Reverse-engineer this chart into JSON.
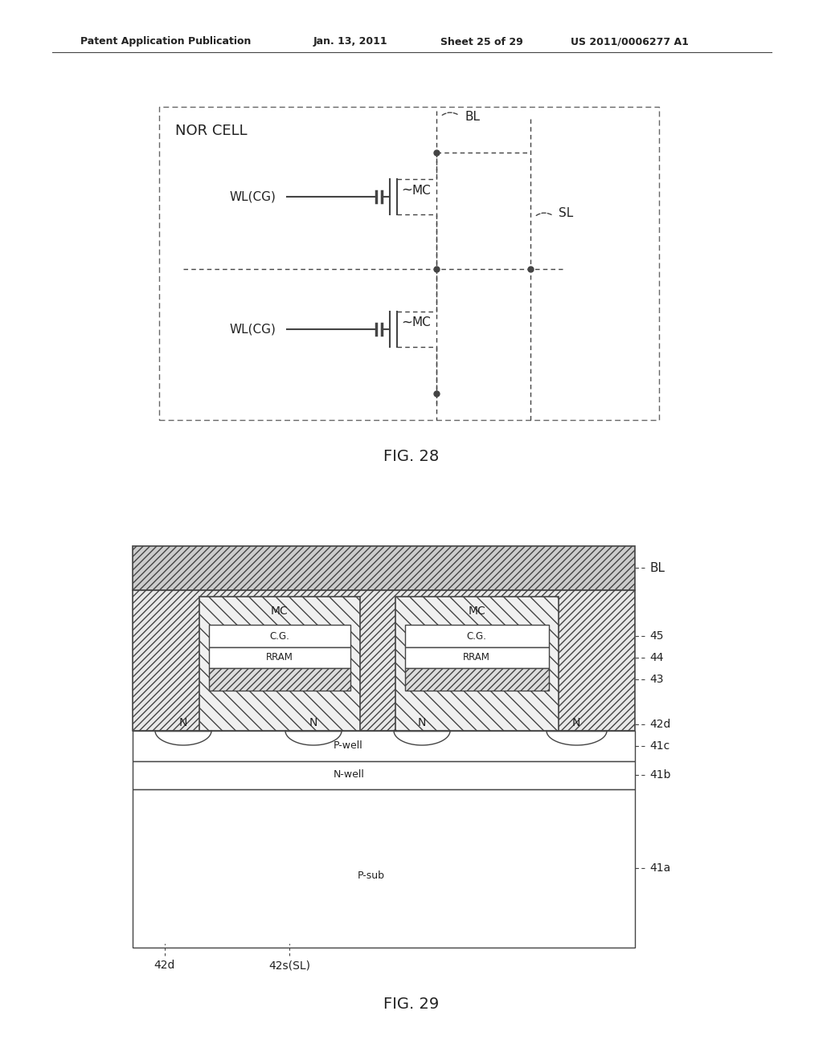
{
  "bg_color": "#ffffff",
  "header_text": "Patent Application Publication",
  "header_date": "Jan. 13, 2011",
  "header_sheet": "Sheet 25 of 29",
  "header_patent": "US 2011/0006277 A1",
  "fig28_title": "FIG. 28",
  "fig29_title": "FIG. 29",
  "nor_cell_label": "NOR CELL",
  "line_color": "#444444",
  "text_color": "#222222"
}
